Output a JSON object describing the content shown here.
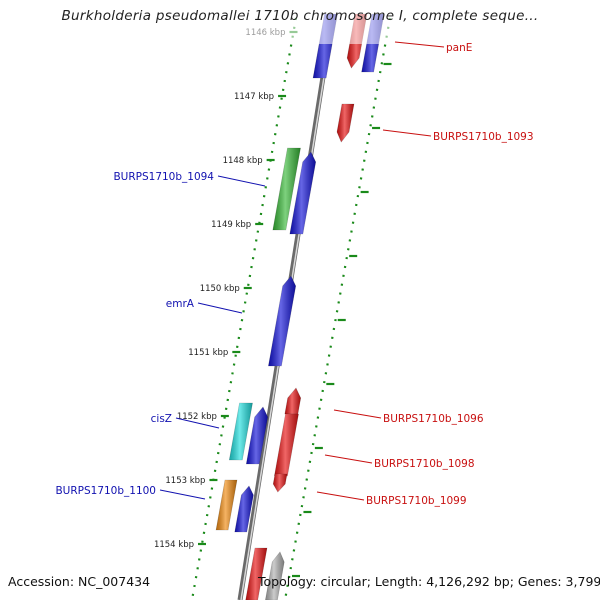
{
  "title": "Burkholderia pseudomallei 1710b chromosome I, complete seque...",
  "footer": {
    "accession": "Accession: NC_007434",
    "topology": "Topology: circular; Length: 4,126,292 bp; Genes: 3,799"
  },
  "colors": {
    "forward": "#1414d8",
    "reverse": "#e81414",
    "green": "#38b838",
    "cyan": "#20dede",
    "orange": "#f08a10",
    "grey": "#b0b0b0",
    "ruler": "#1a8a1a",
    "label_left": "#1212b0",
    "label_right": "#c81010"
  },
  "kbp_ticks": [
    "1146 kbp",
    "1147 kbp",
    "1148 kbp",
    "1149 kbp",
    "1150 kbp",
    "1151 kbp",
    "1152 kbp",
    "1153 kbp",
    "1154 kbp"
  ],
  "labels_left": [
    "BURPS1710b_1094",
    "emrA",
    "cisZ",
    "BURPS1710b_1100"
  ],
  "labels_right": [
    "panE",
    "BURPS1710b_1093",
    "BURPS1710b_1096",
    "BURPS1710b_1098",
    "BURPS1710b_1099"
  ]
}
